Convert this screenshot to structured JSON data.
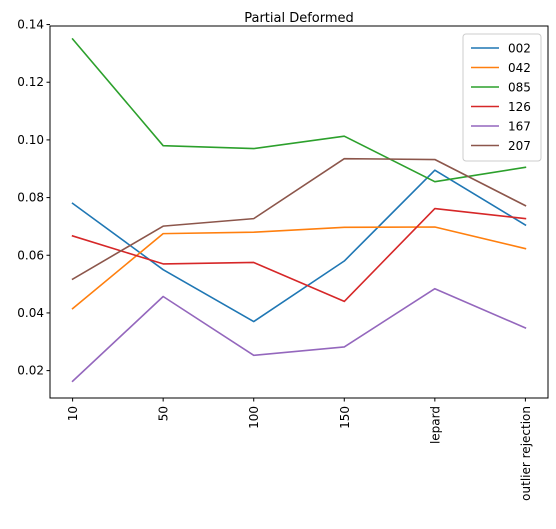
{
  "chart_data": {
    "type": "line",
    "title": "Partial Deformed",
    "xlabel": "",
    "ylabel": "",
    "categories": [
      "10",
      "50",
      "100",
      "150",
      "lepard",
      "outlier rejection"
    ],
    "ylim": [
      0.0105,
      0.1395
    ],
    "yticks": [
      0.02,
      0.04,
      0.06,
      0.08,
      0.1,
      0.12,
      0.14
    ],
    "ytick_labels": [
      "0.02",
      "0.04",
      "0.06",
      "0.08",
      "0.10",
      "0.12",
      "0.14"
    ],
    "grid": false,
    "legend_position": "top-right",
    "series": [
      {
        "name": "002",
        "color": "#1f77b4",
        "values": [
          0.078,
          0.055,
          0.037,
          0.058,
          0.0895,
          0.0705
        ]
      },
      {
        "name": "042",
        "color": "#ff7f0e",
        "values": [
          0.0415,
          0.0675,
          0.068,
          0.0697,
          0.0698,
          0.0623
        ]
      },
      {
        "name": "085",
        "color": "#2ca02c",
        "values": [
          0.135,
          0.098,
          0.097,
          0.1013,
          0.0855,
          0.0905
        ]
      },
      {
        "name": "126",
        "color": "#d62728",
        "values": [
          0.0667,
          0.057,
          0.0575,
          0.044,
          0.0762,
          0.0727
        ]
      },
      {
        "name": "167",
        "color": "#9467bd",
        "values": [
          0.0163,
          0.0457,
          0.0253,
          0.0282,
          0.0484,
          0.0348
        ]
      },
      {
        "name": "207",
        "color": "#8c564b",
        "values": [
          0.0517,
          0.0701,
          0.0727,
          0.0935,
          0.0932,
          0.0772
        ]
      }
    ]
  }
}
